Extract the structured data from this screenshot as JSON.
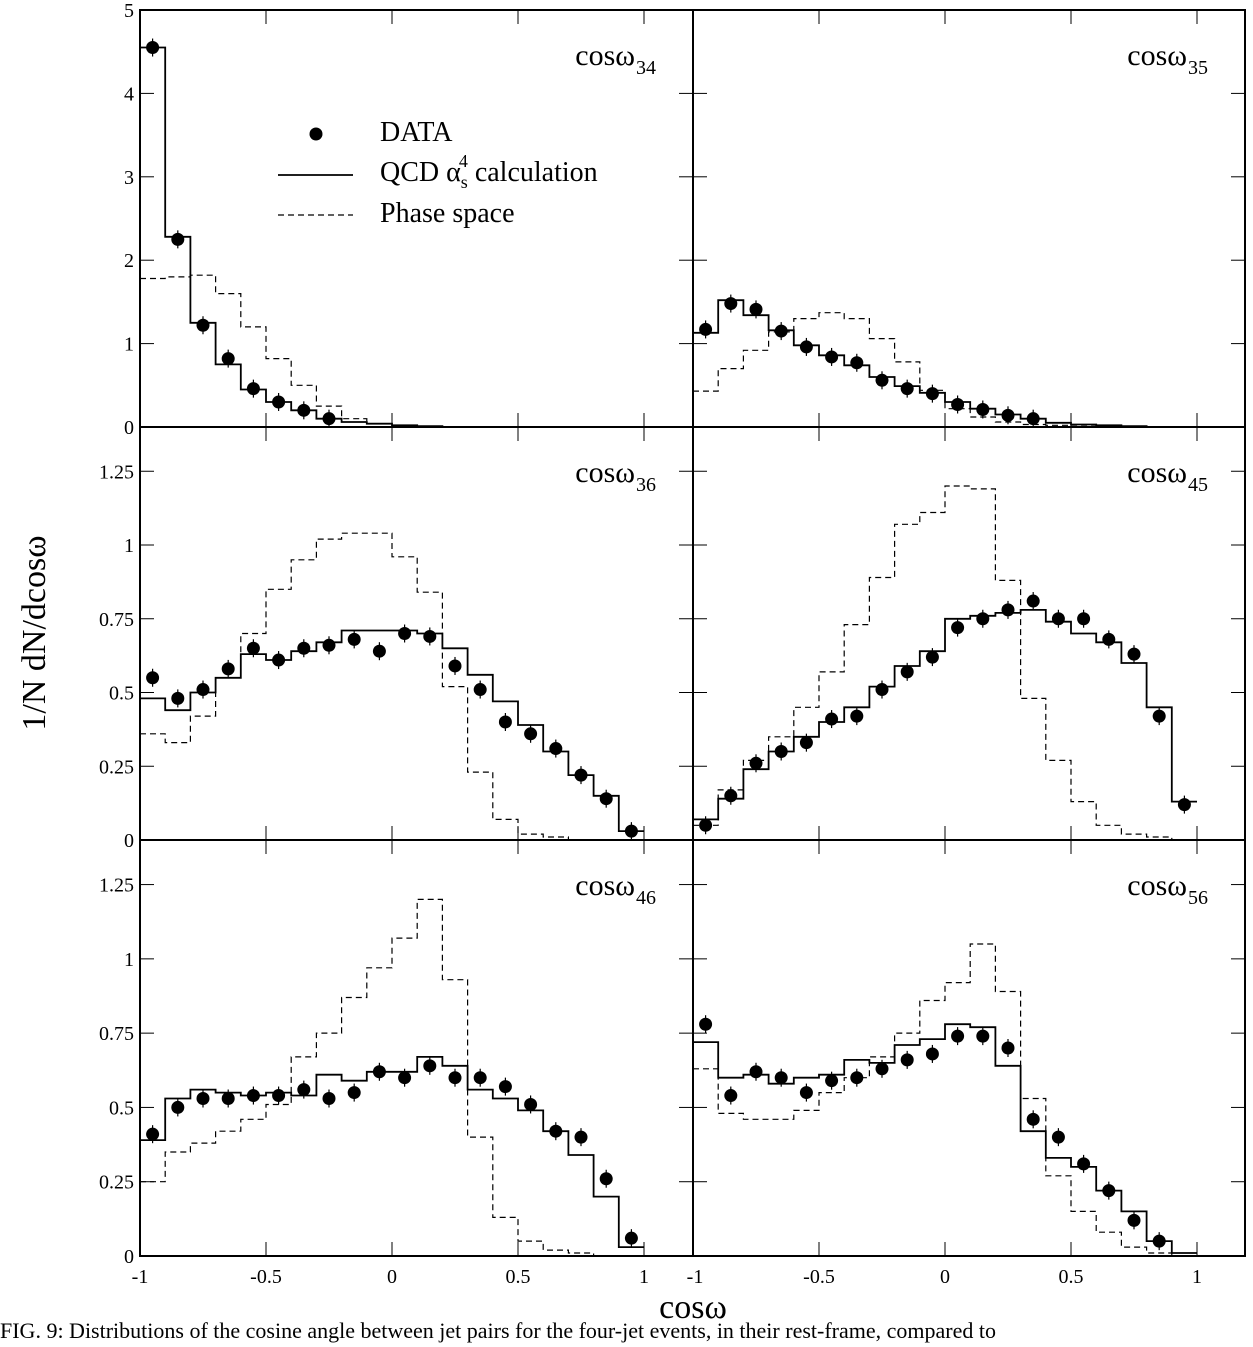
{
  "chart_data": {
    "type": "step-histogram",
    "xlabel": "cosω",
    "ylabel": "1/N dN/dcosω",
    "x_range": [
      -1,
      1
    ],
    "x_ticks": [
      "-1",
      "-0.5",
      "0",
      "0.5",
      "1"
    ],
    "bin_centers": [
      -0.95,
      -0.85,
      -0.75,
      -0.65,
      -0.55,
      -0.45,
      -0.35,
      -0.25,
      -0.15,
      -0.05,
      0.05,
      0.15,
      0.25,
      0.35,
      0.45,
      0.55,
      0.65,
      0.75,
      0.85,
      0.95
    ],
    "legend": {
      "data_label": "DATA",
      "qcd_label_prefix": "QCD α",
      "qcd_label_sub": "s",
      "qcd_label_sup": "4",
      "qcd_label_suffix": " calculation",
      "phase_label": "Phase space"
    },
    "panels": [
      {
        "label": "cosω",
        "sub": "34",
        "ylim": [
          0,
          5
        ],
        "yticks": [
          "0",
          "1",
          "2",
          "3",
          "4",
          "5"
        ],
        "data": [
          4.55,
          2.25,
          1.22,
          0.82,
          0.46,
          0.3,
          0.2,
          0.1,
          null,
          null,
          null,
          null,
          null,
          null,
          null,
          null,
          null,
          null,
          null,
          null
        ],
        "qcd": [
          4.55,
          2.28,
          1.25,
          0.75,
          0.45,
          0.3,
          0.2,
          0.1,
          0.06,
          0.04,
          0.02,
          0.01,
          0,
          0,
          0,
          0,
          0,
          0,
          0,
          0
        ],
        "phase": [
          1.78,
          1.8,
          1.82,
          1.6,
          1.2,
          0.82,
          0.5,
          0.25,
          0.1,
          0.04,
          0.02,
          0.01,
          0,
          0,
          0,
          0,
          0,
          0,
          0,
          0
        ]
      },
      {
        "label": "cosω",
        "sub": "35",
        "ylim": [
          0,
          5
        ],
        "yticks": [],
        "data": [
          1.17,
          1.48,
          1.41,
          1.15,
          0.96,
          0.84,
          0.77,
          0.56,
          0.46,
          0.4,
          0.27,
          0.21,
          0.14,
          0.1,
          null,
          null,
          null,
          null,
          null,
          null
        ],
        "qcd": [
          1.13,
          1.52,
          1.34,
          1.16,
          0.98,
          0.86,
          0.74,
          0.6,
          0.49,
          0.41,
          0.3,
          0.22,
          0.15,
          0.1,
          0.05,
          0.03,
          0.02,
          0.01,
          0,
          0
        ],
        "phase": [
          0.43,
          0.7,
          0.92,
          1.14,
          1.3,
          1.37,
          1.3,
          1.06,
          0.78,
          0.44,
          0.22,
          0.12,
          0.06,
          0.03,
          0.02,
          0.01,
          0,
          0,
          0,
          0
        ]
      },
      {
        "label": "cosω",
        "sub": "36",
        "ylim": [
          0,
          1.4
        ],
        "yticks": [
          "0",
          "0.25",
          "0.5",
          "0.75",
          "1",
          "1.25"
        ],
        "data": [
          0.55,
          0.48,
          0.51,
          0.58,
          0.65,
          0.61,
          0.65,
          0.66,
          0.68,
          0.64,
          0.7,
          0.69,
          0.59,
          0.51,
          0.4,
          0.36,
          0.31,
          0.22,
          0.14,
          0.03
        ],
        "qcd": [
          0.48,
          0.44,
          0.5,
          0.55,
          0.63,
          0.61,
          0.64,
          0.67,
          0.71,
          0.71,
          0.71,
          0.7,
          0.65,
          0.56,
          0.47,
          0.39,
          0.3,
          0.22,
          0.15,
          0.03
        ],
        "phase": [
          0.36,
          0.33,
          0.42,
          0.55,
          0.7,
          0.85,
          0.95,
          1.02,
          1.04,
          1.04,
          0.96,
          0.84,
          0.52,
          0.23,
          0.07,
          0.02,
          0.01,
          0,
          0,
          0
        ]
      },
      {
        "label": "cosω",
        "sub": "45",
        "ylim": [
          0,
          1.4
        ],
        "yticks": [],
        "data": [
          0.05,
          0.15,
          0.26,
          0.3,
          0.33,
          0.41,
          0.42,
          0.51,
          0.57,
          0.62,
          0.72,
          0.75,
          0.78,
          0.81,
          0.75,
          0.75,
          0.68,
          0.63,
          0.42,
          0.12
        ],
        "qcd": [
          0.07,
          0.14,
          0.24,
          0.3,
          0.35,
          0.4,
          0.45,
          0.52,
          0.59,
          0.64,
          0.75,
          0.76,
          0.77,
          0.78,
          0.74,
          0.7,
          0.67,
          0.6,
          0.45,
          0.13
        ],
        "phase": [
          0.05,
          0.17,
          0.27,
          0.35,
          0.45,
          0.57,
          0.73,
          0.89,
          1.07,
          1.11,
          1.2,
          1.19,
          0.88,
          0.48,
          0.27,
          0.13,
          0.05,
          0.02,
          0.01,
          0
        ]
      },
      {
        "label": "cosω",
        "sub": "46",
        "ylim": [
          0,
          1.4
        ],
        "yticks": [
          "0",
          "0.25",
          "0.5",
          "0.75",
          "1",
          "1.25"
        ],
        "data": [
          0.41,
          0.5,
          0.53,
          0.53,
          0.54,
          0.54,
          0.56,
          0.53,
          0.55,
          0.62,
          0.6,
          0.64,
          0.6,
          0.6,
          0.57,
          0.51,
          0.42,
          0.4,
          0.26,
          0.06
        ],
        "qcd": [
          0.39,
          0.53,
          0.56,
          0.55,
          0.54,
          0.55,
          0.54,
          0.61,
          0.59,
          0.62,
          0.62,
          0.67,
          0.64,
          0.56,
          0.53,
          0.49,
          0.42,
          0.34,
          0.2,
          0.03
        ],
        "phase": [
          0.25,
          0.35,
          0.38,
          0.42,
          0.46,
          0.51,
          0.67,
          0.75,
          0.87,
          0.97,
          1.07,
          1.2,
          0.93,
          0.4,
          0.13,
          0.05,
          0.02,
          0.01,
          0,
          0
        ]
      },
      {
        "label": "cosω",
        "sub": "56",
        "ylim": [
          0,
          1.4
        ],
        "yticks": [],
        "data": [
          0.78,
          0.54,
          0.62,
          0.6,
          0.55,
          0.59,
          0.6,
          0.63,
          0.66,
          0.68,
          0.74,
          0.74,
          0.7,
          0.46,
          0.4,
          0.31,
          0.22,
          0.12,
          0.05,
          null
        ],
        "qcd": [
          0.72,
          0.6,
          0.61,
          0.58,
          0.6,
          0.61,
          0.66,
          0.65,
          0.71,
          0.73,
          0.78,
          0.77,
          0.64,
          0.42,
          0.33,
          0.3,
          0.22,
          0.15,
          0.05,
          0.01
        ],
        "phase": [
          0.63,
          0.48,
          0.46,
          0.46,
          0.49,
          0.55,
          0.6,
          0.67,
          0.75,
          0.86,
          0.92,
          1.05,
          0.89,
          0.53,
          0.27,
          0.15,
          0.08,
          0.03,
          0.01,
          0
        ]
      }
    ]
  },
  "caption": "FIG. 9: Distributions of the cosine angle between jet pairs for the four-jet events, in their rest-frame, compared to"
}
